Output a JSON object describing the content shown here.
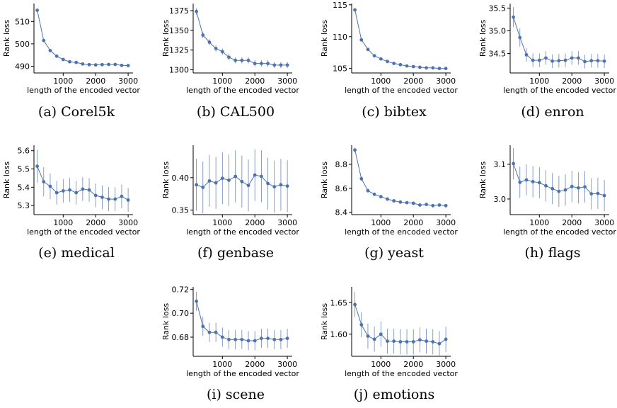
{
  "colors": {
    "series": "#4c72b0",
    "axis": "#000000"
  },
  "chart_data": [
    {
      "id": "a",
      "caption": "(a) Corel5k",
      "type": "line",
      "xlabel": "length of the encoded vector",
      "ylabel": "Rank loss",
      "xlim": [
        100,
        3150
      ],
      "ylim": [
        487,
        518
      ],
      "xticks": [
        1000,
        2000,
        3000
      ],
      "yticks": [
        490,
        500,
        510
      ],
      "x": [
        200,
        400,
        600,
        800,
        1000,
        1200,
        1400,
        1600,
        1800,
        2000,
        2200,
        2400,
        2600,
        2800,
        3000
      ],
      "y": [
        515,
        501.5,
        497,
        494.5,
        493,
        492,
        491.7,
        491,
        490.7,
        490.6,
        490.7,
        490.8,
        490.8,
        490.4,
        490.3
      ],
      "err": [
        0.5,
        0.5,
        0.5,
        0.4,
        0.4,
        0.4,
        0.4,
        0.4,
        0.4,
        0.4,
        0.4,
        0.4,
        0.4,
        0.4,
        0.4
      ]
    },
    {
      "id": "b",
      "caption": "(b) CAL500",
      "type": "line",
      "xlabel": "length of the encoded vector",
      "ylabel": "Rank loss",
      "xlim": [
        100,
        3150
      ],
      "ylim": [
        1296,
        1384
      ],
      "xticks": [
        1000,
        2000,
        3000
      ],
      "yticks": [
        1300,
        1325,
        1350,
        1375
      ],
      "x": [
        200,
        400,
        600,
        800,
        1000,
        1200,
        1400,
        1600,
        1800,
        2000,
        2200,
        2400,
        2600,
        2800,
        3000
      ],
      "y": [
        1374,
        1344,
        1335,
        1327,
        1323,
        1316,
        1312,
        1312,
        1312,
        1308,
        1308,
        1308,
        1306,
        1306,
        1306
      ],
      "err": [
        4,
        4,
        4,
        4,
        4,
        4,
        4,
        4,
        4,
        4,
        4,
        4,
        4,
        4,
        4
      ]
    },
    {
      "id": "c",
      "caption": "(c) bibtex",
      "type": "line",
      "xlabel": "length of the encoded vector",
      "ylabel": "Rank loss",
      "xlim": [
        100,
        3150
      ],
      "ylim": [
        104.3,
        115.2
      ],
      "xticks": [
        1000,
        2000,
        3000
      ],
      "yticks": [
        105,
        110,
        115
      ],
      "x": [
        200,
        400,
        600,
        800,
        1000,
        1200,
        1400,
        1600,
        1800,
        2000,
        2200,
        2400,
        2600,
        2800,
        3000
      ],
      "y": [
        114.2,
        109.5,
        108,
        107,
        106.5,
        106.1,
        105.8,
        105.6,
        105.4,
        105.3,
        105.2,
        105.1,
        105.1,
        105,
        105
      ],
      "err": [
        0.15,
        0.15,
        0.15,
        0.15,
        0.15,
        0.15,
        0.15,
        0.15,
        0.15,
        0.15,
        0.15,
        0.15,
        0.15,
        0.15,
        0.15
      ]
    },
    {
      "id": "d",
      "caption": "(d) enron",
      "type": "line",
      "xlabel": "length of the encoded vector",
      "ylabel": "Rank loss",
      "xlim": [
        100,
        3150
      ],
      "ylim": [
        34.07,
        35.6
      ],
      "xticks": [
        1000,
        2000,
        3000
      ],
      "yticks": [
        34.5,
        35.0,
        35.5
      ],
      "x": [
        200,
        400,
        600,
        800,
        1000,
        1200,
        1400,
        1600,
        1800,
        2000,
        2200,
        2400,
        2600,
        2800,
        3000
      ],
      "y": [
        35.3,
        34.85,
        34.47,
        34.35,
        34.35,
        34.4,
        34.33,
        34.34,
        34.35,
        34.4,
        34.4,
        34.32,
        34.34,
        34.34,
        34.33
      ],
      "err": [
        0.22,
        0.2,
        0.15,
        0.15,
        0.15,
        0.15,
        0.15,
        0.15,
        0.15,
        0.15,
        0.15,
        0.15,
        0.15,
        0.15,
        0.15
      ]
    },
    {
      "id": "e",
      "caption": "(e) medical",
      "type": "line",
      "xlabel": "length of the encoded vector",
      "ylabel": "Rank loss",
      "xlim": [
        100,
        3150
      ],
      "ylim": [
        5.25,
        5.63
      ],
      "xticks": [
        1000,
        2000,
        3000
      ],
      "yticks": [
        5.3,
        5.4,
        5.5,
        5.6
      ],
      "x": [
        200,
        400,
        600,
        800,
        1000,
        1200,
        1400,
        1600,
        1800,
        2000,
        2200,
        2400,
        2600,
        2800,
        3000
      ],
      "y": [
        5.515,
        5.43,
        5.405,
        5.37,
        5.38,
        5.385,
        5.37,
        5.39,
        5.385,
        5.355,
        5.345,
        5.335,
        5.335,
        5.35,
        5.33
      ],
      "err": [
        0.09,
        0.08,
        0.07,
        0.065,
        0.065,
        0.065,
        0.065,
        0.065,
        0.065,
        0.065,
        0.065,
        0.065,
        0.065,
        0.065,
        0.065
      ]
    },
    {
      "id": "f",
      "caption": "(f) genbase",
      "type": "line",
      "xlabel": "length of the encoded vector",
      "ylabel": "Rank loss",
      "xlim": [
        100,
        3150
      ],
      "ylim": [
        0.343,
        0.45
      ],
      "xticks": [
        1000,
        2000,
        3000
      ],
      "yticks": [
        0.35,
        0.4
      ],
      "x": [
        200,
        400,
        600,
        800,
        1000,
        1200,
        1400,
        1600,
        1800,
        2000,
        2200,
        2400,
        2600,
        2800,
        3000
      ],
      "y": [
        0.389,
        0.385,
        0.395,
        0.392,
        0.399,
        0.396,
        0.402,
        0.394,
        0.388,
        0.404,
        0.402,
        0.391,
        0.386,
        0.389,
        0.387
      ],
      "err": [
        0.04,
        0.04,
        0.04,
        0.04,
        0.04,
        0.04,
        0.04,
        0.04,
        0.04,
        0.04,
        0.04,
        0.04,
        0.04,
        0.04,
        0.04
      ]
    },
    {
      "id": "g",
      "caption": "(g) yeast",
      "type": "line",
      "xlabel": "length of the encoded vector",
      "ylabel": "Rank loss",
      "xlim": [
        100,
        3150
      ],
      "ylim": [
        8.38,
        8.96
      ],
      "xticks": [
        1000,
        2000,
        3000
      ],
      "yticks": [
        8.4,
        8.6,
        8.8
      ],
      "x": [
        200,
        400,
        600,
        800,
        1000,
        1200,
        1400,
        1600,
        1800,
        2000,
        2200,
        2400,
        2600,
        2800,
        3000
      ],
      "y": [
        8.92,
        8.68,
        8.58,
        8.55,
        8.53,
        8.51,
        8.495,
        8.485,
        8.48,
        8.475,
        8.46,
        8.465,
        8.455,
        8.46,
        8.455
      ],
      "err": [
        0.02,
        0.02,
        0.015,
        0.015,
        0.015,
        0.015,
        0.015,
        0.015,
        0.015,
        0.015,
        0.015,
        0.015,
        0.015,
        0.015,
        0.015
      ]
    },
    {
      "id": "h",
      "caption": "(h) flags",
      "type": "line",
      "xlabel": "length of the encoded vector",
      "ylabel": "Rank loss",
      "xlim": [
        100,
        3150
      ],
      "ylim": [
        2.955,
        3.155
      ],
      "xticks": [
        1000,
        2000,
        3000
      ],
      "yticks": [
        3.0,
        3.1
      ],
      "x": [
        200,
        400,
        600,
        800,
        1000,
        1200,
        1400,
        1600,
        1800,
        2000,
        2200,
        2400,
        2600,
        2800,
        3000
      ],
      "y": [
        3.102,
        3.048,
        3.055,
        3.05,
        3.047,
        3.038,
        3.03,
        3.022,
        3.026,
        3.036,
        3.032,
        3.035,
        3.015,
        3.016,
        3.01
      ],
      "err": [
        0.045,
        0.045,
        0.045,
        0.045,
        0.045,
        0.045,
        0.045,
        0.045,
        0.045,
        0.045,
        0.045,
        0.045,
        0.045,
        0.045,
        0.045
      ]
    },
    {
      "id": "i",
      "caption": "(i) scene",
      "type": "line",
      "xlabel": "length of the encoded vector",
      "ylabel": "Rank loss",
      "xlim": [
        100,
        3150
      ],
      "ylim": [
        0.664,
        0.722
      ],
      "xticks": [
        1000,
        2000,
        3000
      ],
      "yticks": [
        0.68,
        0.7,
        0.72
      ],
      "x": [
        200,
        400,
        600,
        800,
        1000,
        1200,
        1400,
        1600,
        1800,
        2000,
        2200,
        2400,
        2600,
        2800,
        3000
      ],
      "y": [
        0.71,
        0.689,
        0.684,
        0.684,
        0.68,
        0.678,
        0.678,
        0.678,
        0.677,
        0.677,
        0.679,
        0.679,
        0.678,
        0.678,
        0.679
      ],
      "err": [
        0.008,
        0.008,
        0.008,
        0.008,
        0.008,
        0.008,
        0.008,
        0.008,
        0.008,
        0.008,
        0.008,
        0.008,
        0.008,
        0.008,
        0.008
      ]
    },
    {
      "id": "j",
      "caption": "(j) emotions",
      "type": "line",
      "xlabel": "length of the encoded vector",
      "ylabel": "Rank loss",
      "xlim": [
        100,
        3150
      ],
      "ylim": [
        1.565,
        1.675
      ],
      "xticks": [
        1000,
        2000,
        3000
      ],
      "yticks": [
        1.6,
        1.65
      ],
      "x": [
        200,
        400,
        600,
        800,
        1000,
        1200,
        1400,
        1600,
        1800,
        2000,
        2200,
        2400,
        2600,
        2800,
        3000
      ],
      "y": [
        1.647,
        1.615,
        1.597,
        1.592,
        1.6,
        1.589,
        1.589,
        1.588,
        1.588,
        1.588,
        1.591,
        1.589,
        1.588,
        1.585,
        1.592
      ],
      "err": [
        0.02,
        0.02,
        0.02,
        0.02,
        0.02,
        0.02,
        0.02,
        0.02,
        0.02,
        0.02,
        0.02,
        0.02,
        0.02,
        0.02,
        0.02
      ]
    }
  ]
}
